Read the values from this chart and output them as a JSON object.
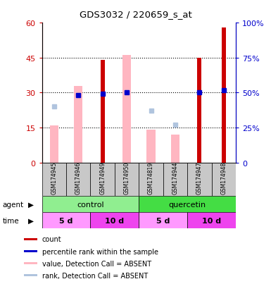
{
  "title": "GDS3032 / 220659_s_at",
  "samples": [
    "GSM174945",
    "GSM174946",
    "GSM174949",
    "GSM174950",
    "GSM174819",
    "GSM174944",
    "GSM174947",
    "GSM174948"
  ],
  "count_values": [
    null,
    null,
    44,
    null,
    null,
    null,
    45,
    58
  ],
  "value_absent": [
    16,
    33,
    null,
    46,
    14,
    12,
    null,
    null
  ],
  "rank_absent_pct": [
    40,
    48,
    null,
    50,
    37,
    27,
    null,
    null
  ],
  "percentile_rank_pct": [
    null,
    48,
    49,
    50,
    null,
    null,
    50,
    52
  ],
  "ylim_left": [
    0,
    60
  ],
  "ylim_right": [
    0,
    100
  ],
  "yticks_left": [
    0,
    15,
    30,
    45,
    60
  ],
  "yticks_right": [
    0,
    25,
    50,
    75,
    100
  ],
  "ytick_labels_left": [
    "0",
    "15",
    "30",
    "45",
    "60"
  ],
  "ytick_labels_right": [
    "0",
    "25%",
    "50%",
    "75%",
    "100%"
  ],
  "agent_groups": [
    {
      "label": "control",
      "start": 0,
      "end": 4,
      "color": "#90EE90"
    },
    {
      "label": "quercetin",
      "start": 4,
      "end": 8,
      "color": "#44DD44"
    }
  ],
  "time_groups": [
    {
      "label": "5 d",
      "start": 0,
      "end": 2,
      "color": "#FF99FF"
    },
    {
      "label": "10 d",
      "start": 2,
      "end": 4,
      "color": "#EE44EE"
    },
    {
      "label": "5 d",
      "start": 4,
      "end": 6,
      "color": "#FF99FF"
    },
    {
      "label": "10 d",
      "start": 6,
      "end": 8,
      "color": "#EE44EE"
    }
  ],
  "legend_items": [
    {
      "color": "#CC0000",
      "label": "count",
      "marker": "square"
    },
    {
      "color": "#0000CC",
      "label": "percentile rank within the sample",
      "marker": "square"
    },
    {
      "color": "#FFB6C1",
      "label": "value, Detection Call = ABSENT",
      "marker": "square"
    },
    {
      "color": "#B0C4DE",
      "label": "rank, Detection Call = ABSENT",
      "marker": "square"
    }
  ],
  "count_color": "#CC0000",
  "absent_value_color": "#FFB6C1",
  "rank_color_absent": "#B0C4DE",
  "percentile_color": "#0000CC",
  "left_axis_color": "#CC0000",
  "right_axis_color": "#0000CC",
  "sample_box_color": "#C8C8C8",
  "plot_bg_color": "#FFFFFF"
}
